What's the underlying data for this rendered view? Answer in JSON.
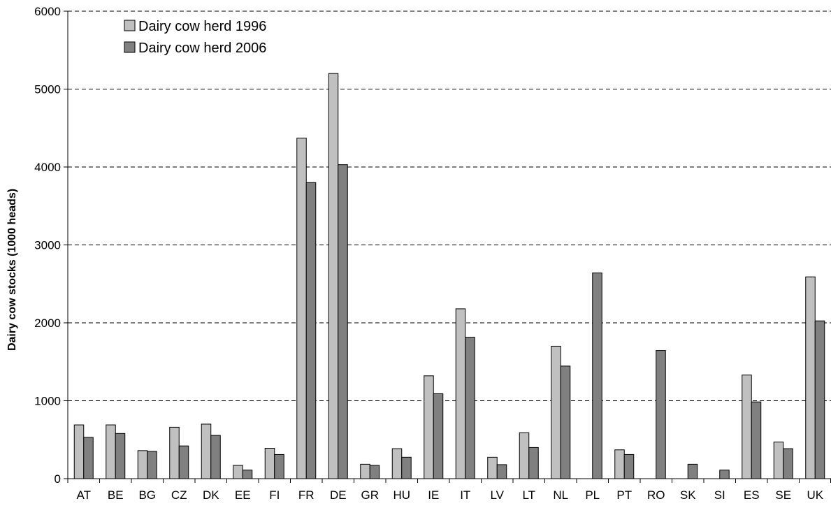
{
  "chart_data": {
    "type": "bar",
    "title": "",
    "xlabel": "",
    "ylabel": "Dairy cow stocks (1000 heads)",
    "ylim": [
      0,
      6000
    ],
    "yticks": [
      0,
      1000,
      2000,
      3000,
      4000,
      5000,
      6000
    ],
    "grid": "horizontal dashed",
    "legend_position": "top-left",
    "categories": [
      "AT",
      "BE",
      "BG",
      "CZ",
      "DK",
      "EE",
      "FI",
      "FR",
      "DE",
      "GR",
      "HU",
      "IE",
      "IT",
      "LV",
      "LT",
      "NL",
      "PL",
      "PT",
      "RO",
      "SK",
      "SI",
      "ES",
      "SE",
      "UK"
    ],
    "series": [
      {
        "name": "Dairy cow herd 1996",
        "color": "#c0c0c0",
        "values": [
          690,
          690,
          360,
          660,
          700,
          170,
          390,
          4370,
          5200,
          185,
          385,
          1320,
          2180,
          275,
          590,
          1700,
          null,
          370,
          null,
          null,
          null,
          1330,
          470,
          2590
        ]
      },
      {
        "name": "Dairy cow herd 2006",
        "color": "#808080",
        "values": [
          530,
          580,
          350,
          420,
          555,
          110,
          310,
          3800,
          4030,
          170,
          275,
          1090,
          1815,
          180,
          400,
          1445,
          2640,
          310,
          1645,
          185,
          110,
          985,
          385,
          2025
        ]
      }
    ]
  }
}
